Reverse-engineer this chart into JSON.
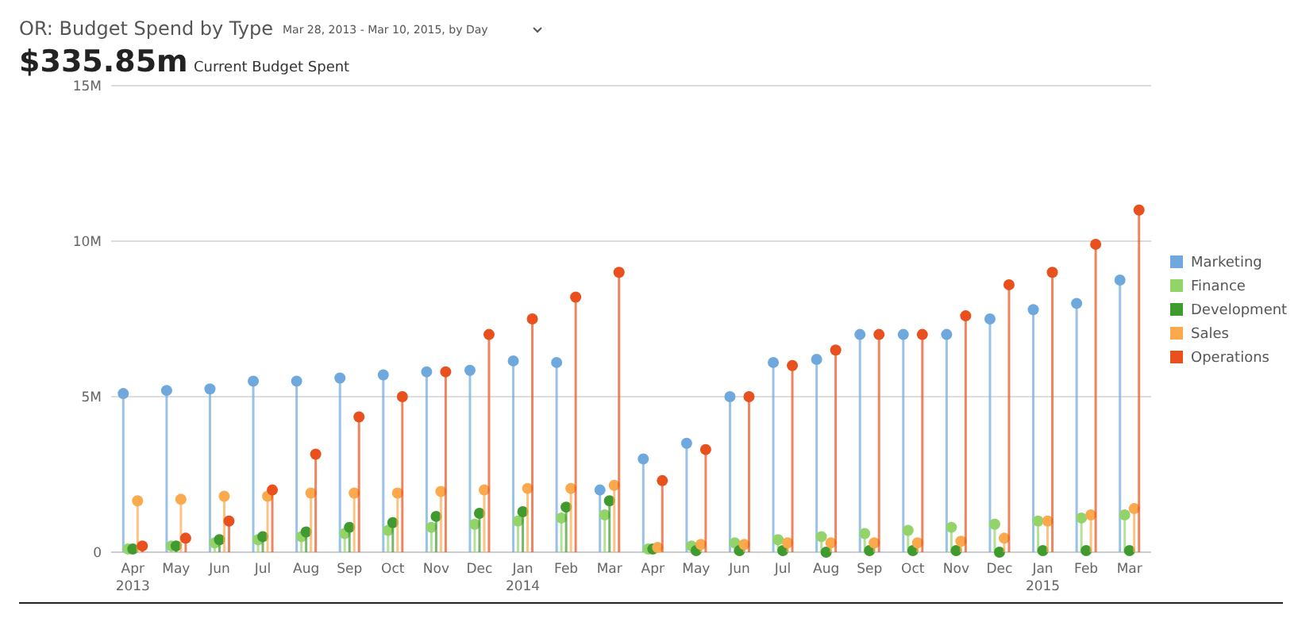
{
  "chart_data": {
    "type": "lollipop",
    "title": "OR: Budget Spend by Type",
    "subtitle": "Mar 28, 2013 - Mar 10, 2015, by Day",
    "annotations": [
      "$335.85m",
      "Current Budget Spent"
    ],
    "categories": [
      "Apr\n2013",
      "May",
      "Jun",
      "Jul",
      "Aug",
      "Sep",
      "Oct",
      "Nov",
      "Dec",
      "Jan\n2014",
      "Feb",
      "Mar",
      "Apr",
      "May",
      "Jun",
      "Jul",
      "Aug",
      "Sep",
      "Oct",
      "Nov",
      "Dec",
      "Jan\n2015",
      "Feb",
      "Mar"
    ],
    "series": [
      {
        "name": "Marketing",
        "color": "#6fa8dc",
        "values": [
          5.1,
          5.2,
          5.25,
          5.5,
          5.5,
          5.6,
          5.7,
          5.8,
          5.85,
          6.15,
          6.1,
          2.0,
          3.0,
          3.5,
          5.0,
          6.1,
          6.2,
          7.0,
          7.0,
          7.0,
          7.5,
          7.8,
          8.0,
          8.75
        ]
      },
      {
        "name": "Finance",
        "color": "#93d46a",
        "values": [
          0.1,
          0.2,
          0.3,
          0.4,
          0.5,
          0.6,
          0.7,
          0.8,
          0.9,
          1.0,
          1.1,
          1.2,
          0.1,
          0.2,
          0.3,
          0.4,
          0.5,
          0.6,
          0.7,
          0.8,
          0.9,
          1.0,
          1.1,
          1.2
        ]
      },
      {
        "name": "Development",
        "color": "#3f9a2f",
        "values": [
          0.1,
          0.2,
          0.4,
          0.5,
          0.65,
          0.8,
          0.95,
          1.15,
          1.25,
          1.3,
          1.45,
          1.65,
          0.1,
          0.05,
          0.05,
          0.05,
          0,
          0.05,
          0.05,
          0.05,
          0,
          0.05,
          0.05,
          0.05
        ]
      },
      {
        "name": "Sales",
        "color": "#fba94d",
        "values": [
          1.65,
          1.7,
          1.8,
          1.8,
          1.9,
          1.9,
          1.9,
          1.95,
          2.0,
          2.05,
          2.05,
          2.15,
          0.15,
          0.25,
          0.25,
          0.3,
          0.3,
          0.3,
          0.3,
          0.35,
          0.45,
          1.0,
          1.2,
          1.4
        ]
      },
      {
        "name": "Operations",
        "color": "#e8501e",
        "values": [
          0.2,
          0.45,
          1.0,
          2.0,
          3.15,
          4.35,
          5.0,
          5.8,
          7.0,
          7.5,
          8.2,
          9.0,
          2.3,
          3.3,
          5.0,
          6.0,
          6.5,
          7.0,
          7.0,
          7.6,
          8.6,
          9.0,
          9.9,
          11.0
        ]
      }
    ],
    "ylim": [
      0,
      15
    ],
    "yticks": [
      0,
      {
        "value": 5,
        "label": "5M"
      },
      {
        "value": 10,
        "label": "10M"
      },
      {
        "value": 15,
        "label": "15M"
      }
    ],
    "grid": "y",
    "legend": "right",
    "marker": "circle"
  }
}
